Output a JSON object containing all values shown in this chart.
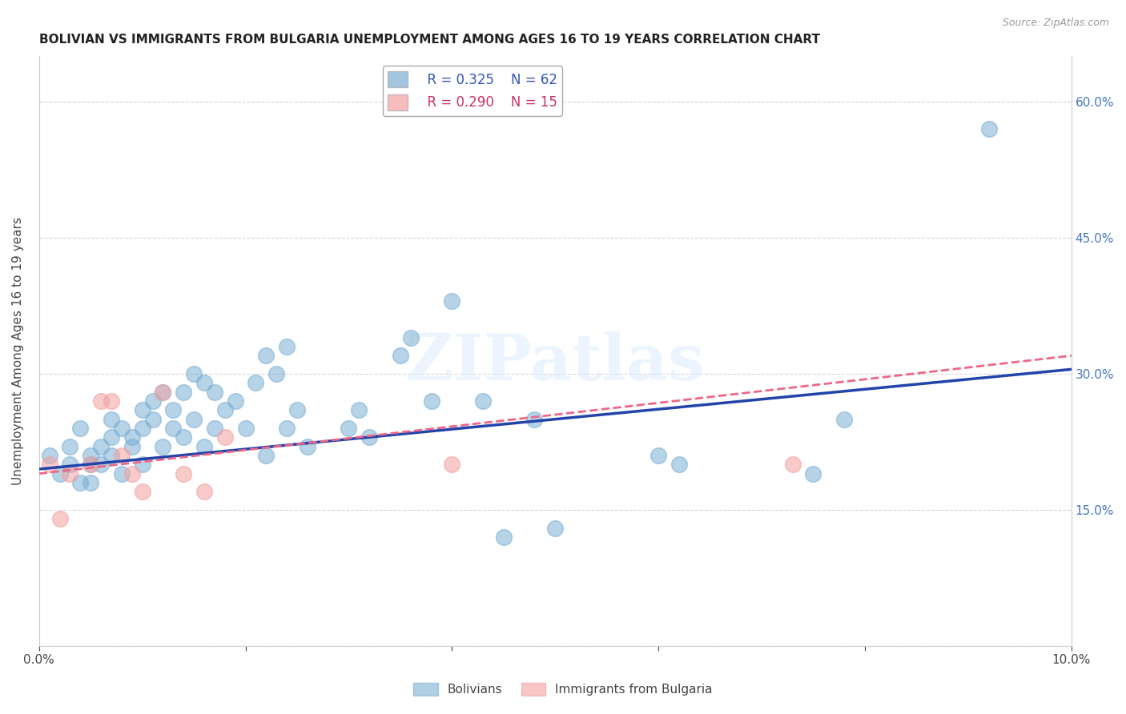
{
  "title": "BOLIVIAN VS IMMIGRANTS FROM BULGARIA UNEMPLOYMENT AMONG AGES 16 TO 19 YEARS CORRELATION CHART",
  "source": "Source: ZipAtlas.com",
  "ylabel": "Unemployment Among Ages 16 to 19 years",
  "xlim": [
    0.0,
    0.1
  ],
  "ylim": [
    0.0,
    0.65
  ],
  "x_ticks": [
    0.0,
    0.02,
    0.04,
    0.06,
    0.08,
    0.1
  ],
  "x_tick_labels": [
    "0.0%",
    "",
    "",
    "",
    "",
    "10.0%"
  ],
  "y_ticks": [
    0.0,
    0.15,
    0.3,
    0.45,
    0.6
  ],
  "y_tick_labels": [
    "",
    "15.0%",
    "30.0%",
    "45.0%",
    "60.0%"
  ],
  "legend_r1": "R = 0.325",
  "legend_n1": "N = 62",
  "legend_r2": "R = 0.290",
  "legend_n2": "N = 15",
  "blue_color": "#7BAFD4",
  "pink_color": "#F4A0A0",
  "line_blue": "#2244AA",
  "line_pink": "#EE6688",
  "bolivians_x": [
    0.001,
    0.002,
    0.003,
    0.003,
    0.004,
    0.004,
    0.005,
    0.005,
    0.005,
    0.006,
    0.006,
    0.007,
    0.007,
    0.007,
    0.008,
    0.008,
    0.009,
    0.009,
    0.01,
    0.01,
    0.01,
    0.011,
    0.011,
    0.012,
    0.012,
    0.013,
    0.013,
    0.014,
    0.014,
    0.015,
    0.015,
    0.016,
    0.016,
    0.017,
    0.017,
    0.018,
    0.019,
    0.02,
    0.021,
    0.022,
    0.022,
    0.023,
    0.024,
    0.024,
    0.025,
    0.026,
    0.03,
    0.031,
    0.032,
    0.035,
    0.036,
    0.038,
    0.04,
    0.043,
    0.045,
    0.048,
    0.05,
    0.06,
    0.062,
    0.075,
    0.078,
    0.092
  ],
  "bolivians_y": [
    0.21,
    0.19,
    0.2,
    0.22,
    0.24,
    0.18,
    0.2,
    0.21,
    0.18,
    0.22,
    0.2,
    0.25,
    0.23,
    0.21,
    0.24,
    0.19,
    0.23,
    0.22,
    0.26,
    0.24,
    0.2,
    0.27,
    0.25,
    0.28,
    0.22,
    0.26,
    0.24,
    0.28,
    0.23,
    0.3,
    0.25,
    0.29,
    0.22,
    0.28,
    0.24,
    0.26,
    0.27,
    0.24,
    0.29,
    0.32,
    0.21,
    0.3,
    0.24,
    0.33,
    0.26,
    0.22,
    0.24,
    0.26,
    0.23,
    0.32,
    0.34,
    0.27,
    0.38,
    0.27,
    0.12,
    0.25,
    0.13,
    0.21,
    0.2,
    0.19,
    0.25,
    0.57
  ],
  "bulgaria_x": [
    0.001,
    0.002,
    0.003,
    0.005,
    0.006,
    0.007,
    0.008,
    0.009,
    0.01,
    0.012,
    0.014,
    0.016,
    0.018,
    0.04,
    0.073
  ],
  "bulgaria_y": [
    0.2,
    0.14,
    0.19,
    0.2,
    0.27,
    0.27,
    0.21,
    0.19,
    0.17,
    0.28,
    0.19,
    0.17,
    0.23,
    0.2,
    0.2
  ],
  "blue_line_x": [
    0.0,
    0.1
  ],
  "blue_line_y": [
    0.195,
    0.305
  ],
  "pink_line_x": [
    0.0,
    0.1
  ],
  "pink_line_y": [
    0.19,
    0.32
  ]
}
